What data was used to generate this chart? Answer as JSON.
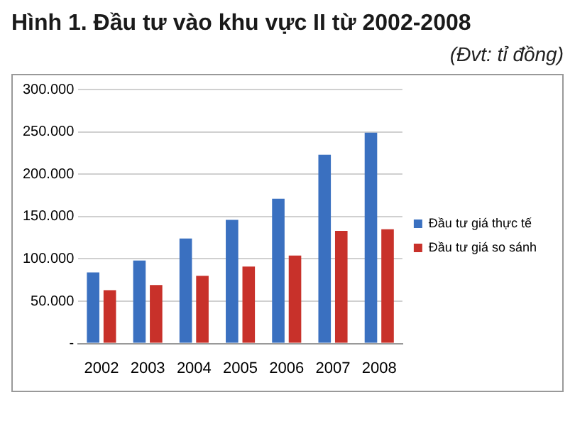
{
  "chart_data": {
    "type": "bar",
    "title": "Hình 1. Đầu tư vào khu vực II từ 2002-2008",
    "subtitle": "(Đvt: tỉ đồng)",
    "categories": [
      "2002",
      "2003",
      "2004",
      "2005",
      "2006",
      "2007",
      "2008"
    ],
    "series": [
      {
        "name": "Đầu tư giá thực tế",
        "color": "#3a70c0",
        "values": [
          84000,
          98000,
          124000,
          146000,
          171000,
          223000,
          249000
        ]
      },
      {
        "name": "Đầu tư giá so sánh",
        "color": "#c8312a",
        "values": [
          63000,
          69000,
          80000,
          91000,
          104000,
          133000,
          135000
        ]
      }
    ],
    "ylim": [
      0,
      300000
    ],
    "yticks": [
      {
        "value": 0,
        "label": "-"
      },
      {
        "value": 50000,
        "label": "50.000"
      },
      {
        "value": 100000,
        "label": "100.000"
      },
      {
        "value": 150000,
        "label": "150.000"
      },
      {
        "value": 200000,
        "label": "200.000"
      },
      {
        "value": 250000,
        "label": "250.000"
      },
      {
        "value": 300000,
        "label": "300.000"
      }
    ],
    "grid": "y",
    "legend": "right"
  }
}
